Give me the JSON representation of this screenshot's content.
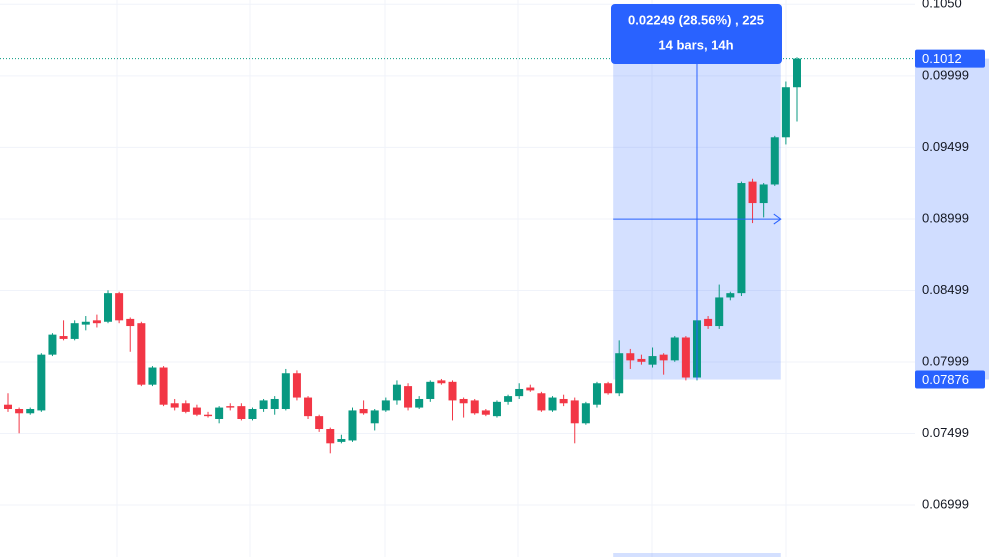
{
  "chart_data": {
    "type": "candlestick",
    "up_color": "#089981",
    "down_color": "#f23645",
    "open": [
      0.077,
      0.0767,
      0.0764,
      0.0766,
      0.0805,
      0.0818,
      0.0816,
      0.0826,
      0.0829,
      0.0828,
      0.0848,
      0.083,
      0.0827,
      0.0784,
      0.0796,
      0.0771,
      0.0771,
      0.0768,
      0.0763,
      0.076,
      0.0769,
      0.0769,
      0.076,
      0.0767,
      0.0767,
      0.0767,
      0.0792,
      0.0775,
      0.0762,
      0.0753,
      0.0744,
      0.0745,
      0.0767,
      0.0757,
      0.0766,
      0.0773,
      0.0783,
      0.0768,
      0.0774,
      0.0787,
      0.0786,
      0.0774,
      0.0773,
      0.0766,
      0.0762,
      0.0772,
      0.0776,
      0.0782,
      0.0778,
      0.0766,
      0.0774,
      0.0773,
      0.0757,
      0.077,
      0.0785,
      0.0778,
      0.0806,
      0.0802,
      0.0798,
      0.0805,
      0.0801,
      0.0817,
      0.0789,
      0.083,
      0.0825,
      0.0845,
      0.0848,
      0.0926,
      0.0911,
      0.0924,
      0.0957,
      0.0992
    ],
    "high": [
      0.0778,
      0.0768,
      0.0768,
      0.0806,
      0.082,
      0.0829,
      0.0829,
      0.0832,
      0.0833,
      0.085,
      0.0849,
      0.0831,
      0.0828,
      0.0797,
      0.0797,
      0.0774,
      0.0773,
      0.077,
      0.0765,
      0.0769,
      0.0771,
      0.0771,
      0.0768,
      0.0774,
      0.0776,
      0.0795,
      0.0794,
      0.0776,
      0.0763,
      0.0754,
      0.0749,
      0.0768,
      0.0773,
      0.0767,
      0.0775,
      0.0787,
      0.0785,
      0.0776,
      0.0787,
      0.0788,
      0.0787,
      0.0775,
      0.0774,
      0.0767,
      0.0773,
      0.0777,
      0.0785,
      0.0784,
      0.0779,
      0.0776,
      0.0777,
      0.0775,
      0.0772,
      0.0786,
      0.0786,
      0.0815,
      0.0809,
      0.0805,
      0.081,
      0.0806,
      0.0818,
      0.0818,
      0.083,
      0.0832,
      0.0854,
      0.0849,
      0.0926,
      0.0928,
      0.0925,
      0.0958,
      0.0996,
      0.1013
    ],
    "low": [
      0.0765,
      0.075,
      0.0763,
      0.0765,
      0.0804,
      0.0815,
      0.0815,
      0.0822,
      0.0824,
      0.0827,
      0.0827,
      0.0807,
      0.0783,
      0.0783,
      0.0769,
      0.0766,
      0.0764,
      0.0762,
      0.0761,
      0.0757,
      0.0766,
      0.0759,
      0.0759,
      0.0765,
      0.0763,
      0.0766,
      0.0773,
      0.076,
      0.0751,
      0.0736,
      0.0743,
      0.0744,
      0.0763,
      0.0752,
      0.0765,
      0.077,
      0.0766,
      0.0767,
      0.0772,
      0.0784,
      0.0759,
      0.0761,
      0.0763,
      0.0762,
      0.0761,
      0.077,
      0.0774,
      0.0779,
      0.0765,
      0.0765,
      0.0769,
      0.0743,
      0.0756,
      0.0768,
      0.0777,
      0.0776,
      0.0795,
      0.0798,
      0.0796,
      0.0791,
      0.08,
      0.0787,
      0.0787,
      0.0823,
      0.0823,
      0.0843,
      0.0846,
      0.0897,
      0.0901,
      0.0923,
      0.0952,
      0.0968
    ],
    "close": [
      0.0767,
      0.0764,
      0.0767,
      0.0805,
      0.0819,
      0.0816,
      0.0827,
      0.0828,
      0.0827,
      0.0848,
      0.0829,
      0.0825,
      0.0784,
      0.0796,
      0.077,
      0.0768,
      0.0765,
      0.0763,
      0.0762,
      0.0768,
      0.0768,
      0.076,
      0.0767,
      0.0773,
      0.0774,
      0.0792,
      0.0775,
      0.0762,
      0.0753,
      0.0743,
      0.0746,
      0.0766,
      0.0764,
      0.0766,
      0.0773,
      0.0784,
      0.0768,
      0.0774,
      0.0786,
      0.0785,
      0.0773,
      0.0771,
      0.0764,
      0.0763,
      0.0772,
      0.0776,
      0.0781,
      0.078,
      0.0766,
      0.0775,
      0.0771,
      0.0757,
      0.0771,
      0.0785,
      0.0778,
      0.0806,
      0.0801,
      0.08,
      0.0804,
      0.0801,
      0.0817,
      0.0789,
      0.0829,
      0.0825,
      0.0845,
      0.0848,
      0.0925,
      0.0911,
      0.0924,
      0.0957,
      0.0992,
      0.1012
    ],
    "ylim": [
      0.06635,
      0.1053
    ],
    "yticks": [
      {
        "value": 0.105,
        "label": "0.1050"
      },
      0.09999,
      0.09499,
      0.08999,
      0.08499,
      0.07999,
      0.07499,
      0.06999
    ],
    "grid": true,
    "price_line": {
      "value": 0.1012,
      "label": "0.1012"
    },
    "measure": {
      "low": {
        "value": 0.07876,
        "label": "0.07876"
      },
      "text": "0.02249 (28.56%) , 225",
      "subtext": "14 bars, 14h"
    }
  }
}
